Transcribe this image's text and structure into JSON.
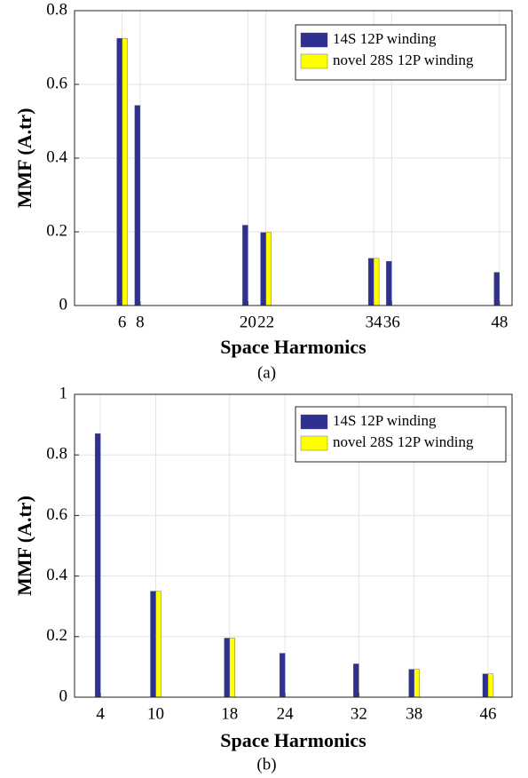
{
  "chart_data": [
    {
      "type": "bar",
      "xlabel": "Space Harmonics",
      "ylabel": "MMF (A.tr)",
      "caption": "(a)",
      "x": [
        6,
        8,
        20,
        22,
        34,
        36,
        48
      ],
      "series": [
        {
          "name": "14S 12P winding",
          "color": "#2e3192",
          "values": [
            0.725,
            0.543,
            0.218,
            0.198,
            0.128,
            0.12,
            0.09
          ]
        },
        {
          "name": "novel 28S 12P winding",
          "color": "#ffff00",
          "values": [
            0.725,
            null,
            null,
            0.198,
            0.128,
            null,
            null
          ]
        }
      ],
      "xlim": [
        0.7,
        49.4
      ],
      "xticks": [
        6,
        8,
        20,
        22,
        34,
        36,
        48
      ],
      "ylim": [
        0,
        0.8
      ],
      "yticks": [
        0,
        0.2,
        0.4,
        0.6,
        0.8
      ],
      "grid": true,
      "legend": "upper right"
    },
    {
      "type": "bar",
      "xlabel": "Space Harmonics",
      "ylabel": "MMF (A.tr)",
      "caption": "(b)",
      "x": [
        4,
        10,
        18,
        24,
        32,
        38,
        46
      ],
      "series": [
        {
          "name": "14S 12P winding",
          "color": "#2e3192",
          "values": [
            0.87,
            0.35,
            0.195,
            0.145,
            0.11,
            0.092,
            0.077
          ]
        },
        {
          "name": "novel 28S 12P winding",
          "color": "#ffff00",
          "values": [
            null,
            0.35,
            0.195,
            null,
            null,
            0.092,
            0.077
          ]
        }
      ],
      "xlim": [
        1.2,
        48.6
      ],
      "xticks": [
        4,
        10,
        18,
        24,
        32,
        38,
        46
      ],
      "ylim": [
        0,
        1
      ],
      "yticks": [
        0,
        0.2,
        0.4,
        0.6,
        0.8,
        1
      ],
      "grid": true,
      "legend": "upper right"
    }
  ]
}
